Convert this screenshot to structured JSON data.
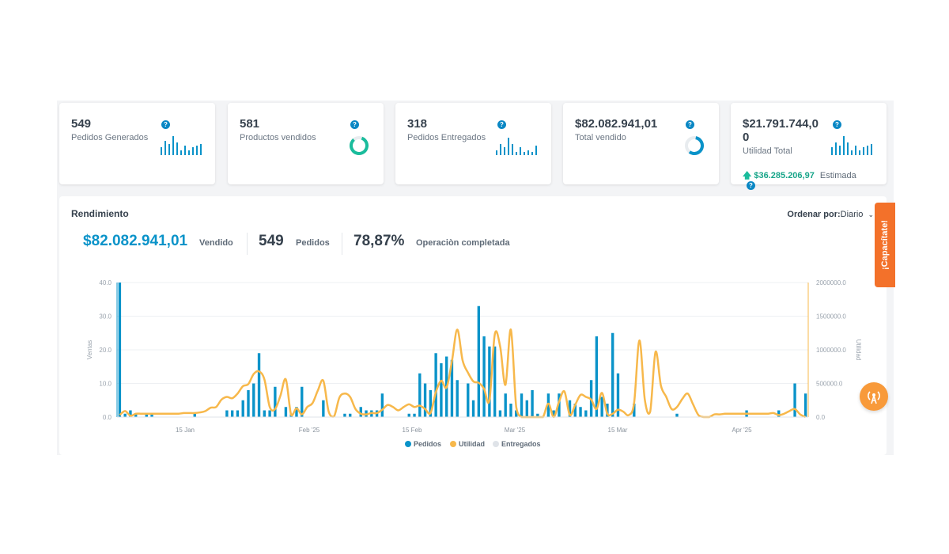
{
  "cards": [
    {
      "value": "549",
      "label": "Pedidos Generados",
      "help": "?"
    },
    {
      "value": "581",
      "label": "Productos vendidos",
      "help": "?"
    },
    {
      "value": "318",
      "label": "Pedidos Entregados",
      "help": "?"
    },
    {
      "value": "$82.082.941,01",
      "label": "Total vendido",
      "help": "?"
    },
    {
      "value_line1": "$21.791.744,0",
      "value_line2": "0",
      "label": "Utilidad Total",
      "help": "?",
      "estimate_value": "$36.285.206,97",
      "estimate_label": "Estimada",
      "estimate_help": "?"
    }
  ],
  "performance": {
    "title": "Rendimiento",
    "sort_label": "Ordenar por:",
    "sort_value": "Diario",
    "sold_value": "$82.082.941,01",
    "sold_label": "Vendido",
    "orders_value": "549",
    "orders_label": "Pedidos",
    "completion_value": "78,87%",
    "completion_label": "Operaciòn completada"
  },
  "side_tab": {
    "label": "¡Capacítate!"
  },
  "colors": {
    "blue": "#0a93c9",
    "orange": "#f7b84b",
    "gray": "#dfe3e8",
    "green": "#1abc9c",
    "accent_orange": "#f3712a"
  },
  "chart_data": {
    "type": "bar",
    "ylabel_left": "Ventas",
    "ylabel_right": "Utilidad",
    "y_left_ticks": [
      "0.0",
      "10.0",
      "20.0",
      "30.0",
      "40.0"
    ],
    "y_right_ticks": [
      "0.0",
      "500000.0",
      "1000000.0",
      "1500000.0",
      "2000000.0"
    ],
    "x_ticks": [
      "15 Jan",
      "Feb '25",
      "15 Feb",
      "Mar '25",
      "15 Mar",
      "Apr '25"
    ],
    "legend": [
      "Pedidos",
      "Utilidad",
      "Entregados"
    ],
    "series": [
      {
        "name": "Pedidos",
        "values": [
          40,
          1,
          2,
          1,
          0,
          1,
          1,
          0,
          0,
          0,
          0,
          0,
          0,
          0,
          1,
          0,
          0,
          0,
          0,
          0,
          2,
          2,
          2,
          5,
          8,
          10,
          19,
          2,
          2,
          9,
          0,
          3,
          1,
          3,
          9,
          0,
          0,
          0,
          5,
          0,
          0,
          0,
          1,
          1,
          0,
          3,
          2,
          2,
          2,
          7,
          0,
          0,
          0,
          0,
          1,
          1,
          13,
          10,
          8,
          19,
          16,
          18,
          17,
          11,
          0,
          10,
          5,
          33,
          24,
          21,
          21,
          2,
          7,
          4,
          2,
          7,
          5,
          8,
          1,
          0,
          7,
          2,
          7,
          0,
          5,
          4,
          3,
          2,
          11,
          24,
          6,
          4,
          25,
          13,
          0,
          0,
          4,
          0,
          0,
          0,
          0,
          0,
          0,
          0,
          1,
          0,
          0,
          0,
          0,
          0,
          0,
          0,
          0,
          0,
          0,
          0,
          0,
          2,
          0,
          0,
          0,
          0,
          0,
          2,
          0,
          0,
          10,
          0,
          7
        ]
      },
      {
        "name": "Utilidad",
        "values": [
          30000,
          90000,
          20000,
          50000,
          50000,
          50000,
          50000,
          50000,
          50000,
          50000,
          50000,
          50000,
          60000,
          60000,
          60000,
          70000,
          90000,
          140000,
          150000,
          260000,
          300000,
          280000,
          350000,
          460000,
          490000,
          640000,
          680000,
          560000,
          150000,
          120000,
          320000,
          560000,
          30000,
          130000,
          40000,
          150000,
          210000,
          400000,
          540000,
          80000,
          10000,
          290000,
          350000,
          300000,
          120000,
          50000,
          40000,
          60000,
          60000,
          110000,
          180000,
          150000,
          100000,
          150000,
          190000,
          150000,
          170000,
          120000,
          60000,
          370000,
          540000,
          440000,
          830000,
          1300000,
          840000,
          660000,
          530000,
          510000,
          420000,
          250000,
          1230000,
          1050000,
          480000,
          1300000,
          150000,
          0,
          0,
          0,
          0,
          0,
          200000,
          0,
          230000,
          380000,
          30000,
          180000,
          330000,
          300000,
          260000,
          120000,
          360000,
          50000,
          50000,
          110000,
          80000,
          30000,
          210000,
          1140000,
          260000,
          80000,
          970000,
          470000,
          300000,
          120000,
          150000,
          270000,
          350000,
          190000,
          30000,
          0,
          0,
          40000,
          40000,
          50000,
          50000,
          50000,
          50000,
          50000,
          50000,
          50000,
          50000,
          50000,
          60000,
          30000,
          50000,
          90000,
          120000,
          40000,
          0
        ]
      },
      {
        "name": "Entregados",
        "values": [
          0,
          0,
          0,
          0,
          0,
          0,
          0,
          0,
          0,
          0,
          0,
          0,
          0,
          0,
          0,
          0,
          0,
          0,
          0,
          0,
          0,
          0,
          0,
          0,
          0,
          0,
          0,
          0,
          0,
          0,
          0,
          0,
          0,
          0,
          0,
          0,
          0,
          0,
          0,
          0,
          0,
          0,
          0,
          0,
          0,
          0,
          0,
          0,
          0,
          0,
          0,
          0,
          0,
          0,
          0,
          0,
          0,
          0,
          0,
          0,
          0,
          0,
          0,
          0,
          0,
          0,
          0,
          0,
          0,
          0,
          0,
          0,
          0,
          0,
          0,
          0,
          0,
          0,
          0,
          0,
          0,
          0,
          0,
          0,
          0,
          0,
          0,
          0,
          0,
          0,
          0,
          0,
          0,
          0,
          0,
          0,
          0,
          0,
          0,
          0,
          0,
          0,
          0,
          0,
          0,
          0,
          0,
          0,
          0,
          0,
          0,
          0,
          0,
          0,
          0,
          0,
          0,
          0,
          0,
          0,
          0,
          0,
          0,
          0,
          0,
          0,
          0,
          0
        ]
      }
    ],
    "ylim_left": [
      0,
      40
    ],
    "ylim_right": [
      0,
      2000000
    ]
  }
}
